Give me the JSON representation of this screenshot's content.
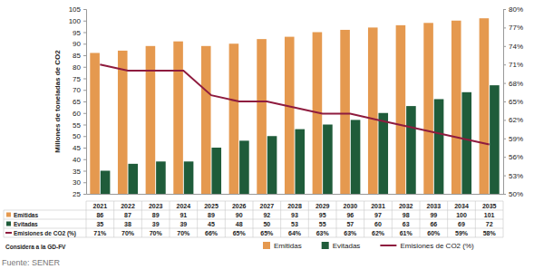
{
  "chart_data": {
    "type": "bar",
    "categories": [
      "2021",
      "2022",
      "2023",
      "2024",
      "2025",
      "2026",
      "2027",
      "2028",
      "2029",
      "2030",
      "2031",
      "2032",
      "2033",
      "2034",
      "2035"
    ],
    "y_label": "Millones de toneladas de CO2",
    "ylim": [
      25,
      105
    ],
    "yticks": [
      25,
      30,
      35,
      40,
      45,
      50,
      55,
      60,
      65,
      70,
      75,
      80,
      85,
      90,
      95,
      100,
      105
    ],
    "y2lim": [
      50,
      80
    ],
    "y2ticks": [
      {
        "value": 50,
        "label": "50%"
      },
      {
        "value": 53,
        "label": "53%"
      },
      {
        "value": 56,
        "label": "56%"
      },
      {
        "value": 59,
        "label": "59%"
      },
      {
        "value": 62,
        "label": "62%"
      },
      {
        "value": 65,
        "label": "65%"
      },
      {
        "value": 68,
        "label": "68%"
      },
      {
        "value": 71,
        "label": "71%"
      },
      {
        "value": 74,
        "label": "74%"
      },
      {
        "value": 77,
        "label": "77%"
      },
      {
        "value": 80,
        "label": "80%"
      }
    ],
    "series": [
      {
        "name": "Emitidas",
        "color": "#e5994f",
        "values": [
          86,
          87,
          89,
          91,
          89,
          90,
          92,
          93,
          95,
          96,
          97,
          98,
          99,
          100,
          101
        ]
      },
      {
        "name": "Evitadas",
        "color": "#1f5c3a",
        "values": [
          35,
          38,
          39,
          39,
          45,
          48,
          50,
          53,
          55,
          57,
          60,
          63,
          66,
          69,
          72
        ]
      },
      {
        "name": "Emisiones de CO2 (%)",
        "type": "line",
        "axis": "y2",
        "color": "#8e1b3e",
        "values": [
          71,
          70,
          70,
          70,
          66,
          65,
          65,
          64,
          63,
          63,
          62,
          61,
          60,
          59,
          58
        ],
        "value_labels": [
          "71%",
          "70%",
          "70%",
          "70%",
          "66%",
          "65%",
          "65%",
          "64%",
          "63%",
          "63%",
          "62%",
          "61%",
          "60%",
          "59%",
          "58%"
        ]
      }
    ],
    "data_labels": true,
    "legend": "bottom",
    "grid": false,
    "annotations": [
      "Considera a la GD-FV"
    ],
    "source": "Fuente: SENER"
  }
}
